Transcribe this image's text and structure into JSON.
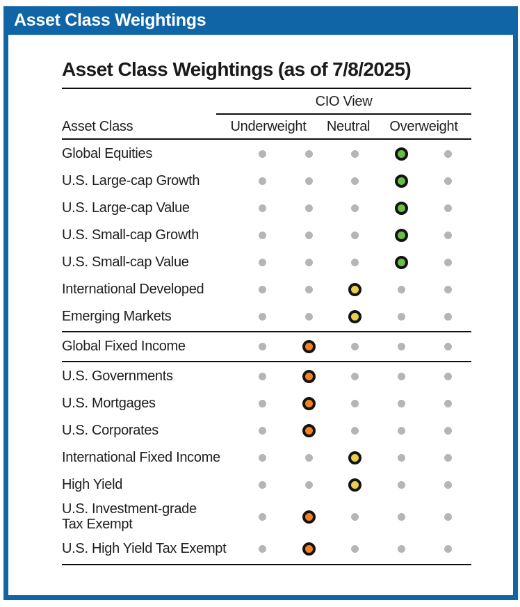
{
  "section_header": "Asset Class Weightings",
  "panel_title": "Asset Class Weightings (as of 7/8/2025)",
  "table_headers": {
    "group": "CIO View",
    "label_col": "Asset Class",
    "scale": [
      "Underweight",
      "Neutral",
      "Overweight"
    ]
  },
  "colors": {
    "accent_blue": "#1065a6",
    "overweight_green": "#6abd45",
    "neutral_yellow": "#e8cf4c",
    "underweight_orange": "#f5821f",
    "inactive_dot_gray": "#b5b5b7",
    "rule_black": "#0d0d0d"
  },
  "chart_data": {
    "type": "table",
    "title": "Asset Class Weightings (as of 7/8/2025)",
    "column_group": "CIO View",
    "columns": [
      "Underweight",
      "Neutral",
      "Overweight"
    ],
    "scale_positions": 5,
    "column_spans": {
      "Underweight": [
        1,
        2
      ],
      "Neutral": [
        3
      ],
      "Overweight": [
        4,
        5
      ]
    },
    "groups": [
      {
        "rows": [
          {
            "asset_class": "Global Equities",
            "position": 4,
            "view": "Overweight",
            "dot_color": "green"
          },
          {
            "asset_class": "U.S. Large-cap Growth",
            "position": 4,
            "view": "Overweight",
            "dot_color": "green"
          },
          {
            "asset_class": "U.S. Large-cap Value",
            "position": 4,
            "view": "Overweight",
            "dot_color": "green"
          },
          {
            "asset_class": "U.S. Small-cap Growth",
            "position": 4,
            "view": "Overweight",
            "dot_color": "green"
          },
          {
            "asset_class": "U.S. Small-cap Value",
            "position": 4,
            "view": "Overweight",
            "dot_color": "green"
          },
          {
            "asset_class": "International Developed",
            "position": 3,
            "view": "Neutral",
            "dot_color": "yellow"
          },
          {
            "asset_class": "Emerging Markets",
            "position": 3,
            "view": "Neutral",
            "dot_color": "yellow"
          }
        ]
      },
      {
        "rows": [
          {
            "asset_class": "Global Fixed Income",
            "position": 2,
            "view": "Underweight",
            "dot_color": "orange"
          }
        ]
      },
      {
        "rows": [
          {
            "asset_class": "U.S. Governments",
            "position": 2,
            "view": "Underweight",
            "dot_color": "orange"
          },
          {
            "asset_class": "U.S. Mortgages",
            "position": 2,
            "view": "Underweight",
            "dot_color": "orange"
          },
          {
            "asset_class": "U.S. Corporates",
            "position": 2,
            "view": "Underweight",
            "dot_color": "orange"
          },
          {
            "asset_class": "International Fixed Income",
            "position": 3,
            "view": "Neutral",
            "dot_color": "yellow"
          },
          {
            "asset_class": "High Yield",
            "position": 3,
            "view": "Neutral",
            "dot_color": "yellow"
          },
          {
            "asset_class": "U.S. Investment-grade Tax Exempt",
            "label_lines": [
              "U.S. Investment-grade",
              "Tax Exempt"
            ],
            "position": 2,
            "view": "Underweight",
            "dot_color": "orange"
          },
          {
            "asset_class": "U.S. High Yield Tax Exempt",
            "position": 2,
            "view": "Underweight",
            "dot_color": "orange"
          }
        ]
      }
    ]
  }
}
